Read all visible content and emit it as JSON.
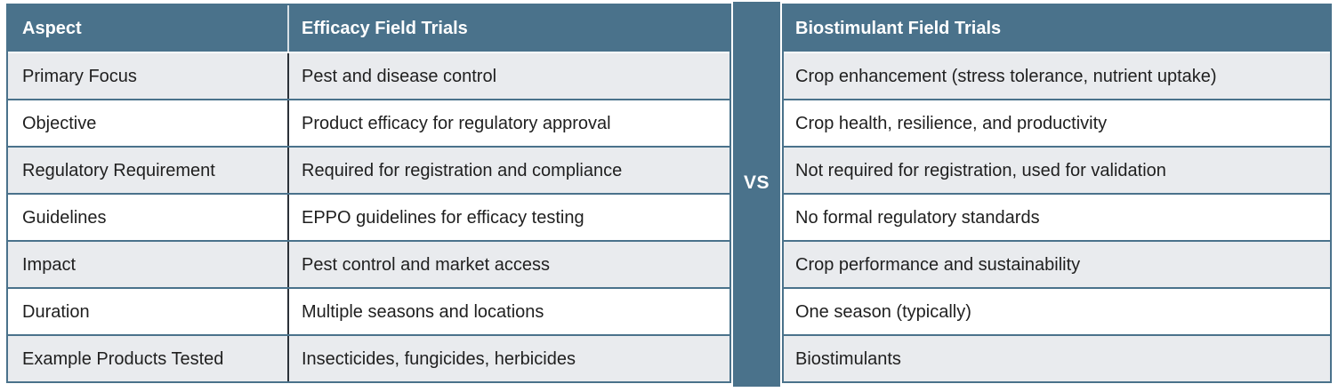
{
  "vs_label": "VS",
  "left_table": {
    "col_aspect_header": "Aspect",
    "col_efficacy_header": "Efficacy Field Trials",
    "rows": [
      {
        "aspect": "Primary Focus",
        "efficacy": "Pest and disease control"
      },
      {
        "aspect": "Objective",
        "efficacy": "Product efficacy for regulatory approval"
      },
      {
        "aspect": "Regulatory Requirement",
        "efficacy": "Required for registration and compliance"
      },
      {
        "aspect": "Guidelines",
        "efficacy": "EPPO guidelines for efficacy testing"
      },
      {
        "aspect": "Impact",
        "efficacy": "Pest control and market access"
      },
      {
        "aspect": "Duration",
        "efficacy": "Multiple seasons and locations"
      },
      {
        "aspect": "Example Products Tested",
        "efficacy": "Insecticides, fungicides, herbicides"
      }
    ]
  },
  "right_table": {
    "header": "Biostimulant Field Trials",
    "rows": [
      "Crop enhancement (stress tolerance, nutrient uptake)",
      "Crop health, resilience, and productivity",
      "Not required for registration, used for validation",
      "No formal regulatory standards",
      "Crop performance and sustainability",
      "One season (typically)",
      "Biostimulants"
    ]
  },
  "colors": {
    "accent_teal": "#4a728b",
    "row_alt_gray": "#e9ebee",
    "row_white": "#ffffff",
    "divider_dark": "#2b3138",
    "body_text": "#1f1f1f",
    "header_text": "#ffffff"
  }
}
